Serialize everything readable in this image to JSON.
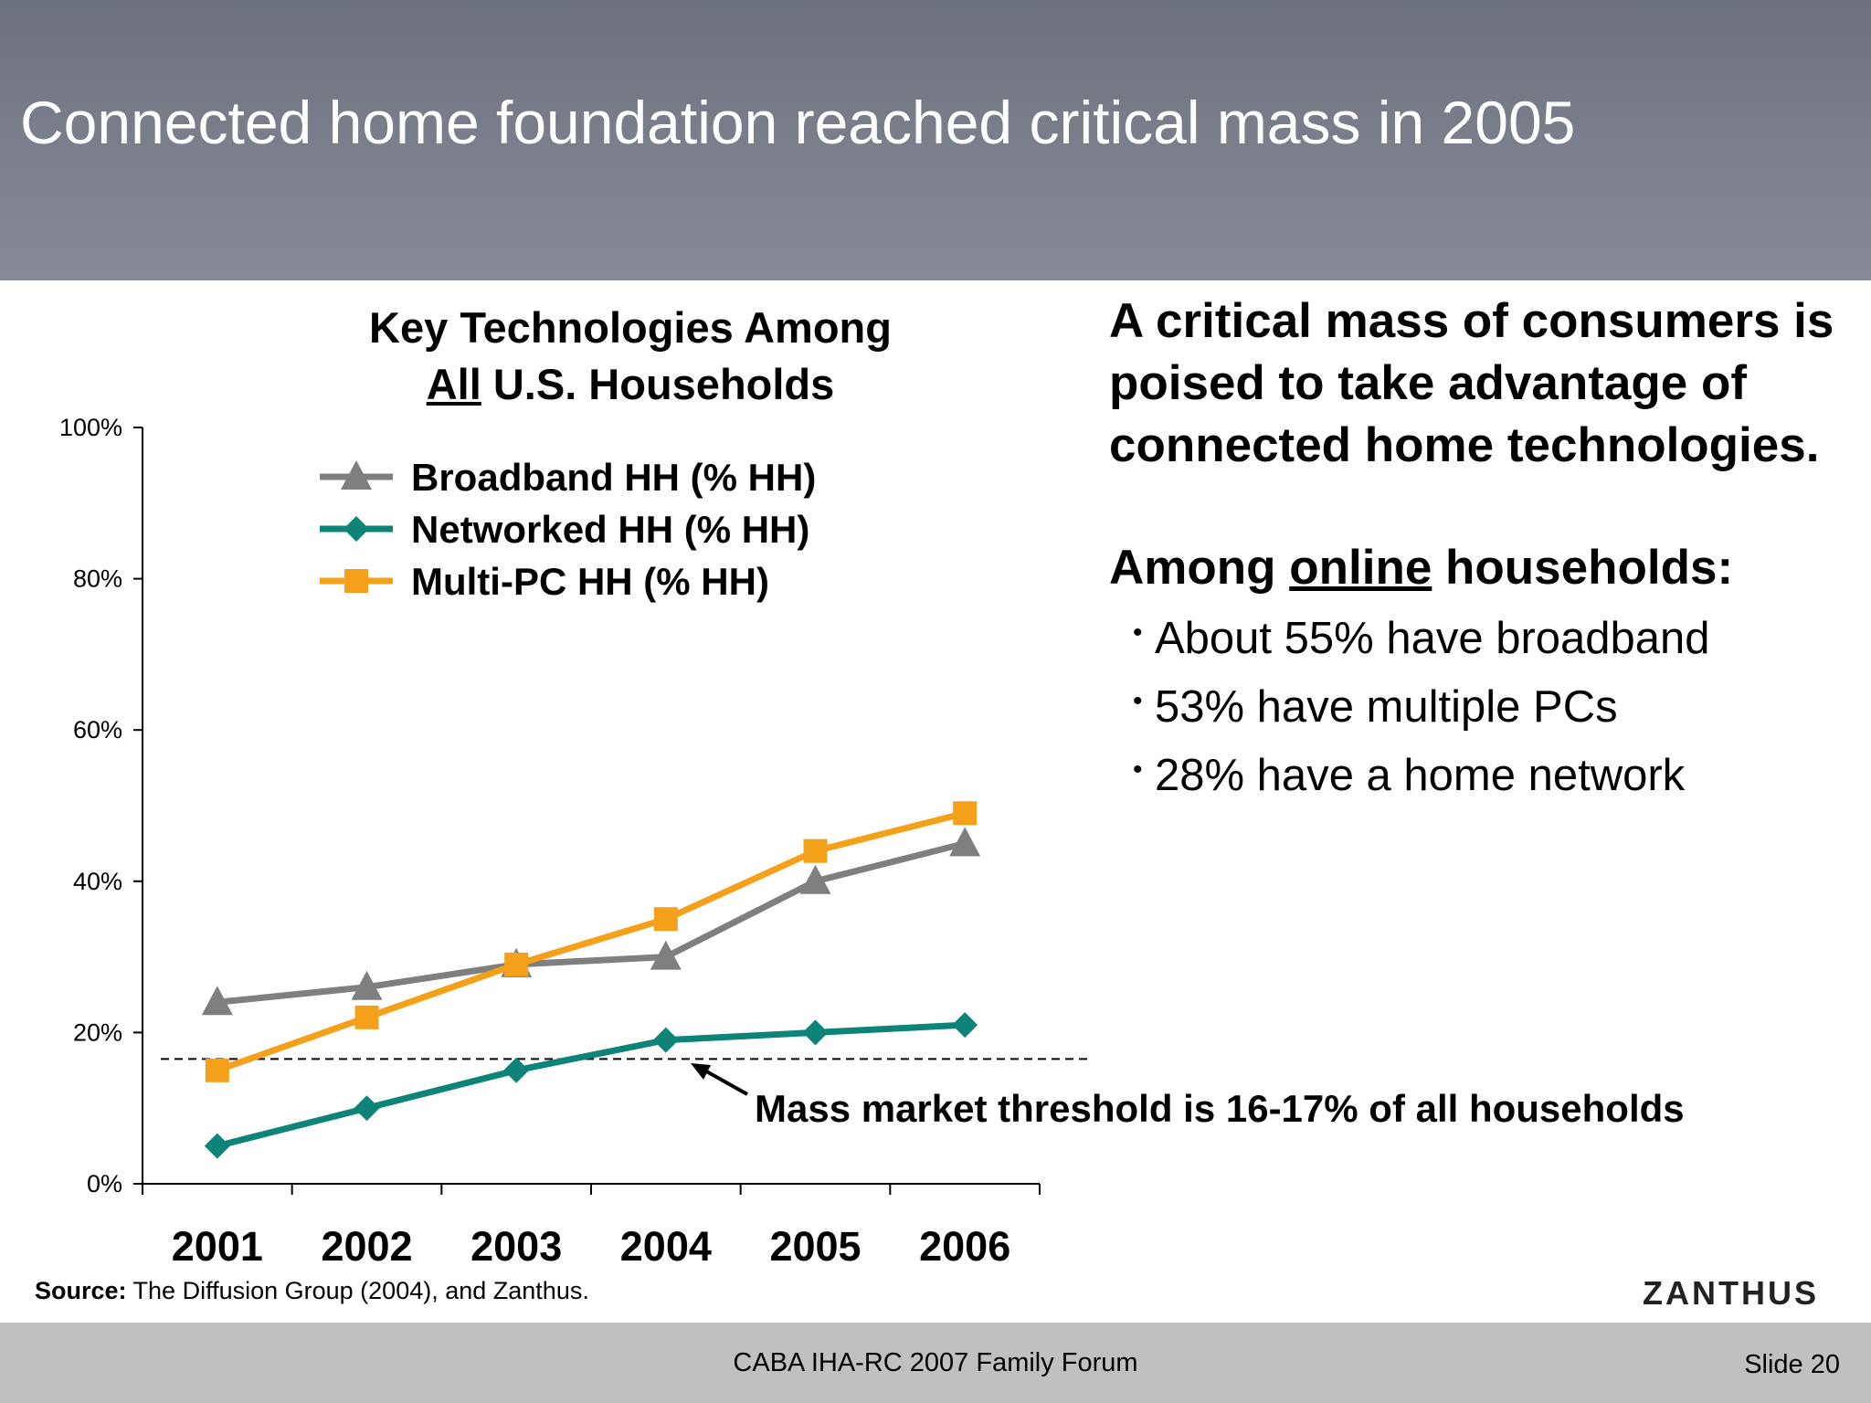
{
  "slide": {
    "title": "Connected home foundation reached critical mass in 2005",
    "chart_title_part1": "Key Technologies Among",
    "chart_title_underlined": "All",
    "chart_title_part2": " U.S. Households",
    "side_headline": "A critical mass of consumers is poised to take advantage of connected home technologies.",
    "side_sub_part1": "Among ",
    "side_sub_underlined": "online",
    "side_sub_part2": " households:",
    "bullets": [
      "About 55% have broadband",
      "53% have multiple PCs",
      "28% have a home network"
    ],
    "source_label": "Source:",
    "source_text": " The Diffusion Group (2004), and Zanthus.",
    "logo": "ZANTHUS",
    "footer_event": "CABA IHA-RC 2007 Family Forum",
    "footer_slide": "Slide 20"
  },
  "chart_data": {
    "type": "line",
    "categories": [
      "2001",
      "2002",
      "2003",
      "2004",
      "2005",
      "2006"
    ],
    "ylim": [
      0,
      100
    ],
    "yticks": [
      "0%",
      "20%",
      "40%",
      "60%",
      "80%",
      "100%"
    ],
    "ytick_values": [
      0,
      20,
      40,
      60,
      80,
      100
    ],
    "legend_position": "top-left",
    "series": [
      {
        "name": "Broadband HH (% HH)",
        "values": [
          24,
          26,
          29,
          30,
          40,
          45
        ],
        "color": "#7f7f7f",
        "marker": "triangle"
      },
      {
        "name": "Networked HH (% HH)",
        "values": [
          5,
          10,
          15,
          19,
          20,
          21
        ],
        "color": "#0e8478",
        "marker": "diamond"
      },
      {
        "name": "Multi-PC HH (% HH)",
        "values": [
          15,
          22,
          29,
          35,
          44,
          49
        ],
        "color": "#f5a01a",
        "marker": "square"
      }
    ],
    "threshold": {
      "value": 16.5,
      "label": "Mass market threshold is 16-17% of all households"
    }
  }
}
